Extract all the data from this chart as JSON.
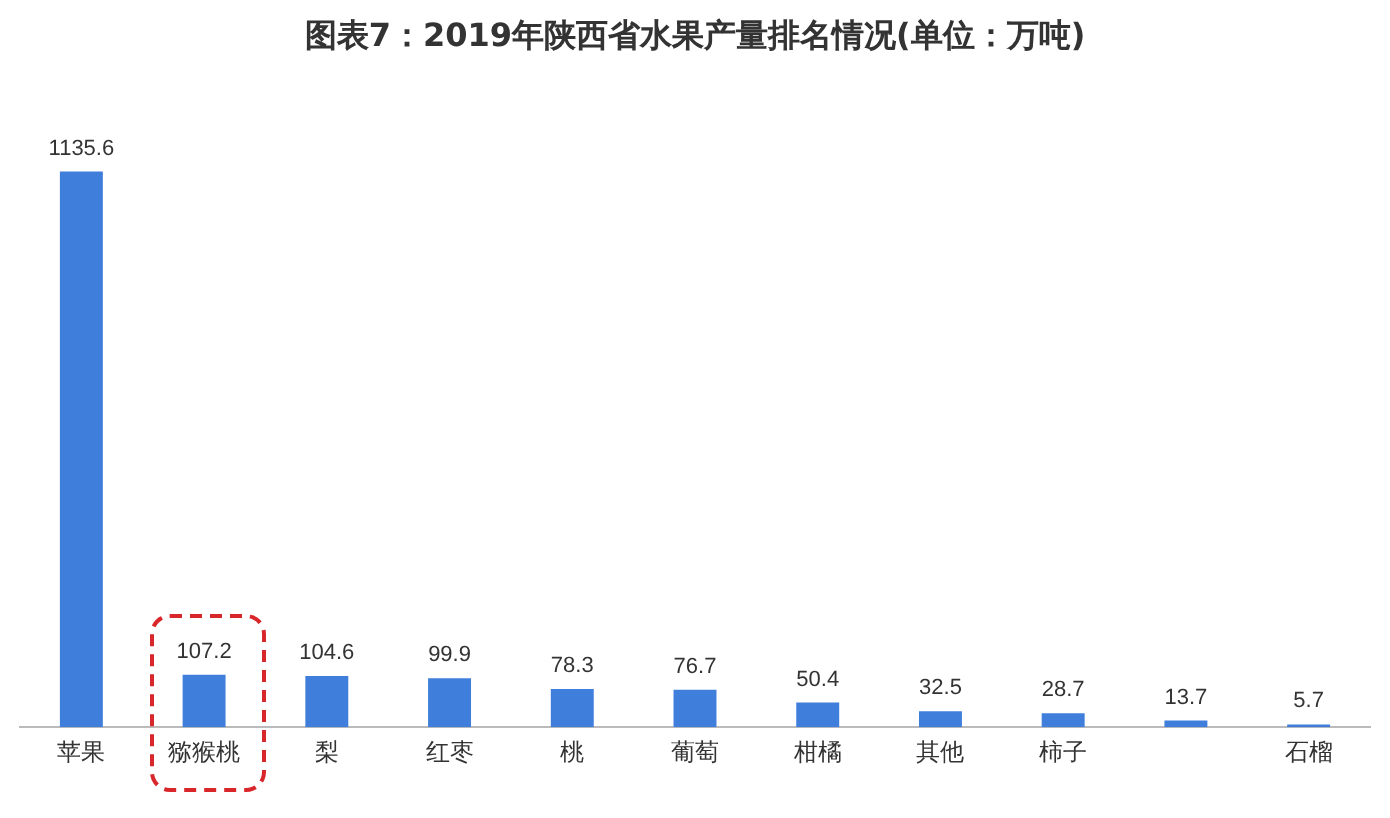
{
  "chart_data": {
    "type": "bar",
    "title": "图表7：2019年陕西省水果产量排名情况(单位：万吨)",
    "categories": [
      "苹果",
      "猕猴桃",
      "梨",
      "红枣",
      "桃",
      "葡萄",
      "柑橘",
      "其他",
      "柿子",
      null,
      "石榴"
    ],
    "values": [
      1135.6,
      107.2,
      104.6,
      99.9,
      78.3,
      76.7,
      50.4,
      32.5,
      28.7,
      13.7,
      5.7
    ],
    "color": "#3f7fdb",
    "data_labels": true,
    "grid": false,
    "legend": false,
    "tick_labels": "x"
  }
}
